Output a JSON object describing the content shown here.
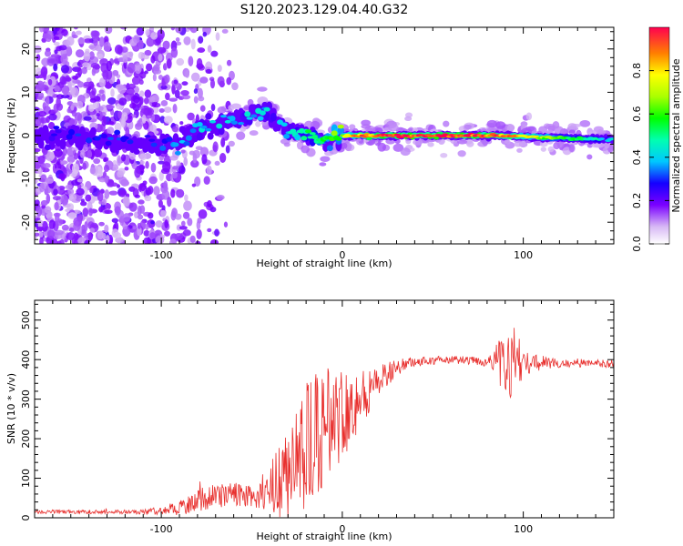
{
  "title": "S120.2023.129.04.40.G32",
  "chart_data": [
    {
      "type": "heatmap",
      "name": "spectrogram",
      "xlabel": "Height of straight line (km)",
      "ylabel": "Frequency (Hz)",
      "xlim": [
        -170,
        150
      ],
      "ylim": [
        -25,
        25
      ],
      "xticks": [
        -100,
        0,
        100
      ],
      "yticks": [
        -20,
        -10,
        0,
        10,
        20
      ],
      "colorbar": {
        "label": "Normalized spectral amplitude",
        "range": [
          0.0,
          1.0
        ],
        "ticks": [
          0.0,
          0.2,
          0.4,
          0.6,
          0.8
        ]
      },
      "ridge": {
        "x": [
          -170,
          -150,
          -130,
          -110,
          -100,
          -90,
          -80,
          -70,
          -60,
          -50,
          -40,
          -30,
          -20,
          -10,
          0,
          10,
          30,
          60,
          90,
          120,
          150
        ],
        "freq": [
          0,
          0,
          -1,
          -2,
          -2,
          -1,
          1,
          3,
          4,
          5,
          5,
          1,
          0,
          -1,
          0,
          0,
          0,
          0,
          0,
          -0.5,
          -1
        ],
        "amplitude": [
          0.2,
          0.3,
          0.3,
          0.3,
          0.3,
          0.35,
          0.4,
          0.4,
          0.4,
          0.4,
          0.4,
          0.4,
          0.5,
          0.6,
          0.7,
          0.9,
          1.0,
          1.0,
          0.9,
          0.6,
          0.4
        ]
      }
    },
    {
      "type": "line",
      "name": "snr",
      "xlabel": "Height of straight line (km)",
      "ylabel": "SNR (10 * v/v)",
      "xlim": [
        -170,
        150
      ],
      "ylim": [
        0,
        550
      ],
      "xticks": [
        -100,
        0,
        100
      ],
      "yticks": [
        0,
        100,
        200,
        300,
        400,
        500
      ],
      "color": "#e8302e",
      "envelope": {
        "x": [
          -170,
          -130,
          -110,
          -100,
          -90,
          -80,
          -70,
          -60,
          -50,
          -40,
          -30,
          -20,
          -10,
          0,
          10,
          20,
          30,
          40,
          60,
          80,
          90,
          95,
          100,
          120,
          150
        ],
        "mean": [
          15,
          15,
          15,
          18,
          25,
          45,
          55,
          60,
          55,
          70,
          120,
          170,
          230,
          270,
          300,
          345,
          380,
          395,
          400,
          395,
          390,
          395,
          392,
          390,
          390
        ],
        "amplitude": [
          5,
          5,
          6,
          10,
          20,
          30,
          30,
          30,
          30,
          60,
          130,
          180,
          150,
          120,
          80,
          40,
          20,
          12,
          10,
          12,
          80,
          100,
          30,
          10,
          10
        ]
      }
    }
  ]
}
